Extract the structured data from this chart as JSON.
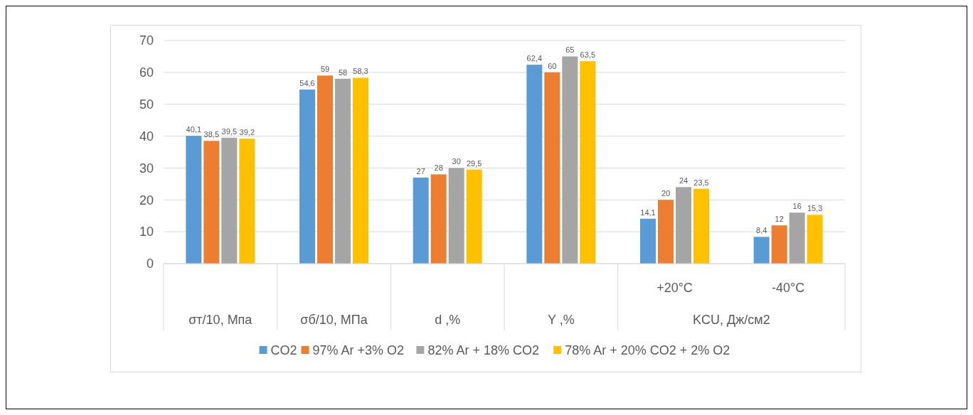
{
  "chart_data": {
    "type": "bar",
    "categories": [
      "σт/10, Мпа",
      "σб/10, МПа",
      "d ,%",
      "Y ,%",
      "+20°C",
      "-40°C"
    ],
    "annotations": [
      "KCU, Дж/см2"
    ],
    "series": [
      {
        "name": "CO2",
        "color": "#5b9bd5",
        "values": [
          40.1,
          54.6,
          27,
          62.4,
          14.1,
          8.4
        ],
        "value_labels": [
          "40,1",
          "54,6",
          "27",
          "62,4",
          "14,1",
          "8,4"
        ]
      },
      {
        "name": "97% Ar +3% O2",
        "color": "#ed7d31",
        "values": [
          38.5,
          59,
          28,
          60,
          20,
          12
        ],
        "value_labels": [
          "38,5",
          "59",
          "28",
          "60",
          "20",
          "12"
        ]
      },
      {
        "name": "82% Ar + 18% CO2",
        "color": "#a5a5a5",
        "values": [
          39.5,
          58,
          30,
          65,
          24,
          16
        ],
        "value_labels": [
          "39,5",
          "58",
          "30",
          "65",
          "24",
          "16"
        ]
      },
      {
        "name": "78% Ar + 20% CO2 + 2% O2",
        "color": "#ffc000",
        "values": [
          39.2,
          58.3,
          29.5,
          63.5,
          23.5,
          15.3
        ],
        "value_labels": [
          "39,2",
          "58,3",
          "29,5",
          "63,5",
          "23,5",
          "15,3"
        ]
      }
    ],
    "ylim": [
      0,
      70
    ],
    "yticks": [
      0,
      10,
      20,
      30,
      40,
      50,
      60,
      70
    ],
    "grid": "y",
    "legend": "bottom"
  }
}
